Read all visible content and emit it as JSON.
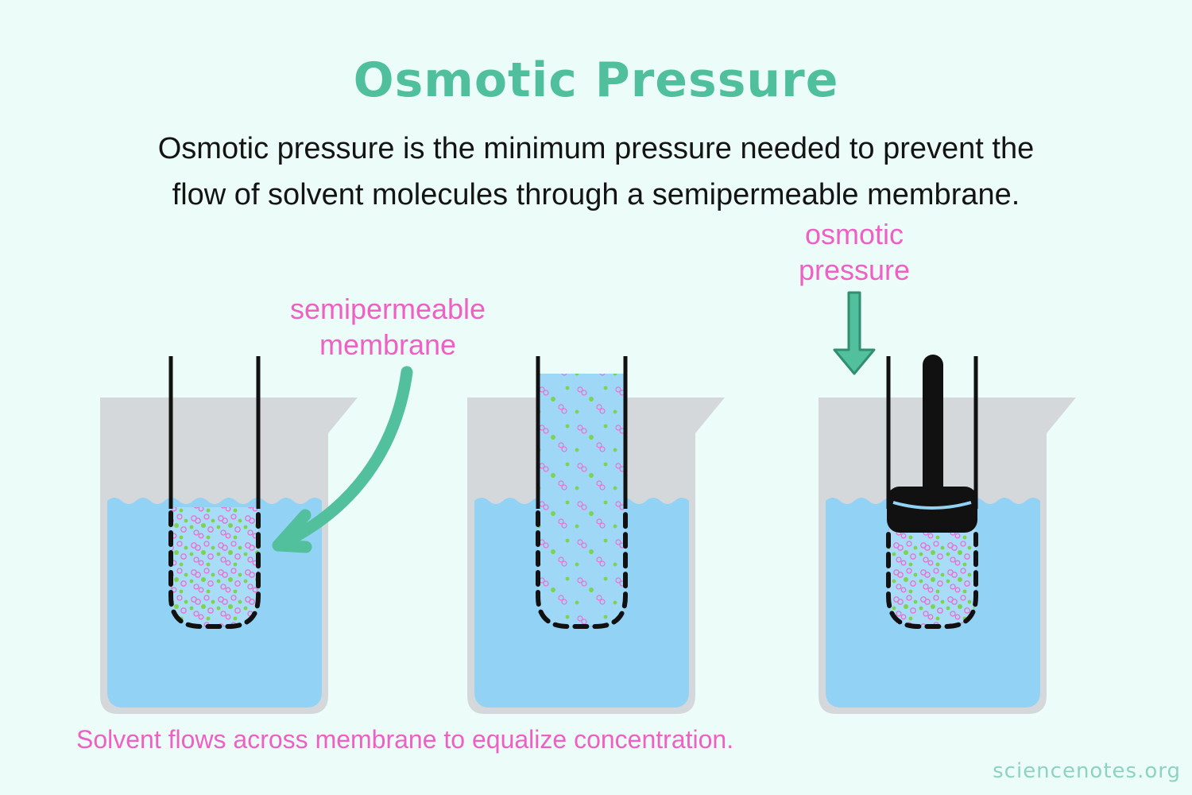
{
  "title": "Osmotic Pressure",
  "subtitle_line1": "Osmotic pressure is the minimum pressure needed to prevent the",
  "subtitle_line2": "flow of solvent molecules through a semipermeable membrane.",
  "labels": {
    "membrane_line1": "semipermeable",
    "membrane_line2": "membrane",
    "pressure_line1": "osmotic",
    "pressure_line2": "pressure"
  },
  "caption": "Solvent flows across membrane to equalize concentration.",
  "watermark": "sciencenotes.org",
  "colors": {
    "title": "#4fbf9c",
    "label": "#ef5fc4",
    "water": "#92d2f5",
    "beaker": "#d4d8da",
    "arrow": "#52bf9d",
    "background": "#ecfdf9"
  },
  "panels": [
    {
      "name": "initial-state"
    },
    {
      "name": "after-osmosis"
    },
    {
      "name": "with-applied-pressure"
    }
  ]
}
